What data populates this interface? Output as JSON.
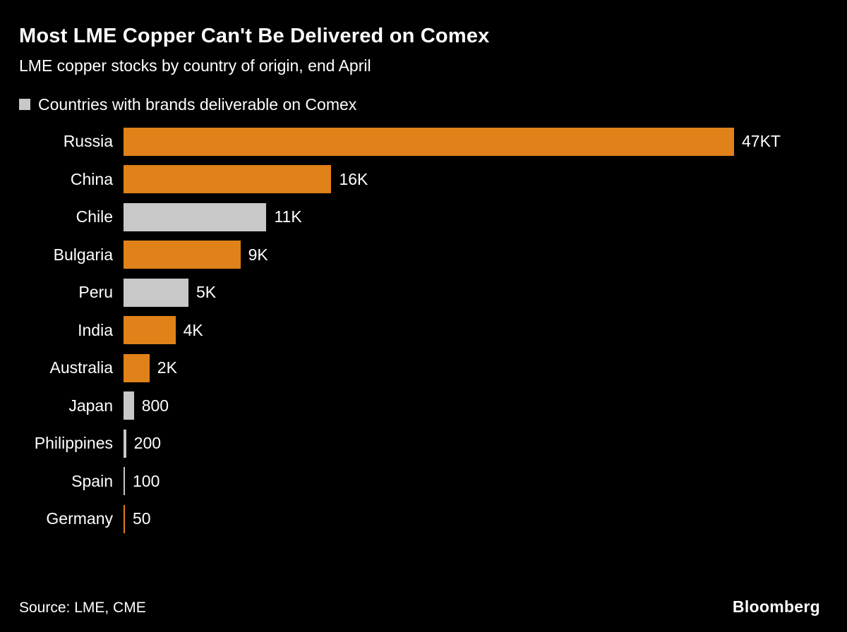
{
  "header": {
    "title": "Most LME Copper Can't Be Delivered on Comex",
    "subtitle": "LME copper stocks by country of origin, end April"
  },
  "legend": {
    "label": "Countries with brands deliverable on Comex"
  },
  "footer": {
    "source": "Source: LME, CME",
    "brand": "Bloomberg"
  },
  "colors": {
    "background": "#000000",
    "bar_orange": "#E08119",
    "bar_gray": "#C8C8C8",
    "text": "#FFFFFF"
  },
  "chart_data": {
    "type": "bar",
    "orientation": "horizontal",
    "title": "Most LME Copper Can't Be Delivered on Comex",
    "subtitle": "LME copper stocks by country of origin, end April",
    "legend": "Countries with brands deliverable on Comex",
    "legend_position": "top-left",
    "grid": false,
    "categories": [
      "Russia",
      "China",
      "Chile",
      "Bulgaria",
      "Peru",
      "India",
      "Australia",
      "Japan",
      "Philippines",
      "Spain",
      "Germany"
    ],
    "values": [
      47000,
      16000,
      11000,
      9000,
      5000,
      4000,
      2000,
      800,
      200,
      100,
      50
    ],
    "value_labels": [
      "47KT",
      "16K",
      "11K",
      "9K",
      "5K",
      "4K",
      "2K",
      "800",
      "200",
      "100",
      "50"
    ],
    "deliverable_on_comex": [
      false,
      false,
      true,
      false,
      true,
      false,
      false,
      true,
      true,
      true,
      false
    ],
    "xlim": [
      0,
      47000
    ],
    "source": "Source: LME, CME"
  }
}
